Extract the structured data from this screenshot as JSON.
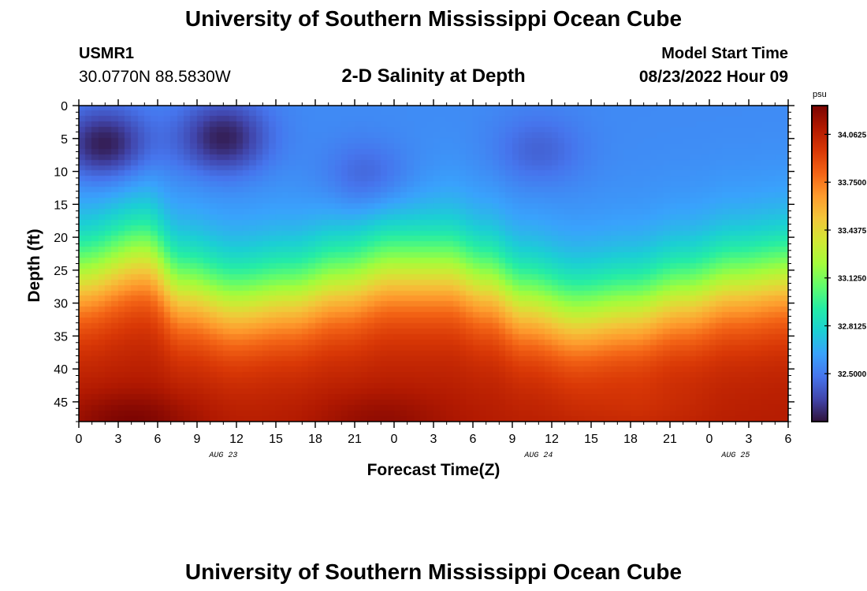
{
  "header": {
    "institution": "University of Southern Mississippi Ocean Cube",
    "station": "USMR1",
    "location": "30.0770N  88.5830W",
    "plot_title": "2-D Salinity at Depth",
    "model_start_label": "Model Start Time",
    "model_start_value": "08/23/2022 Hour 09"
  },
  "footer": {
    "institution": "University of Southern Mississippi Ocean Cube"
  },
  "colors": {
    "ramp": [
      "#30123b",
      "#4145ab",
      "#4675ed",
      "#39a2fc",
      "#1bcfd4",
      "#24eca6",
      "#61fc6c",
      "#a4fc3b",
      "#d1e834",
      "#f3c63a",
      "#fe9b2d",
      "#f36315",
      "#d93806",
      "#b11901",
      "#7a0402"
    ]
  },
  "chart_data": {
    "type": "heatmap",
    "title": "2-D Salinity at Depth",
    "xlabel": "Forecast Time(Z)",
    "ylabel": "Depth (ft)",
    "x_ticks": [
      "0",
      "3",
      "6",
      "9",
      "12",
      "15",
      "18",
      "21",
      "0",
      "3",
      "6",
      "9",
      "12",
      "15",
      "18",
      "21",
      "0",
      "3",
      "6"
    ],
    "date_labels": [
      {
        "text": "AUG 23",
        "at_hours": 11
      },
      {
        "text": "AUG 24",
        "at_hours": 35
      },
      {
        "text": "AUG 25",
        "at_hours": 50
      }
    ],
    "x_range_hours": [
      0,
      54
    ],
    "y_ticks": [
      0,
      5,
      10,
      15,
      20,
      25,
      30,
      35,
      40,
      45
    ],
    "ylim": [
      0,
      48
    ],
    "colorbar": {
      "unit": "psu",
      "range": [
        32.1875,
        34.25
      ],
      "tick_labels": [
        "34.0625",
        "33.7500",
        "33.4375",
        "33.1250",
        "32.8125",
        "32.5000"
      ],
      "tick_values": [
        34.0625,
        33.75,
        33.4375,
        33.125,
        32.8125,
        32.5
      ]
    },
    "halocline_depth_ft": [
      {
        "hour": 0,
        "depth": 26
      },
      {
        "hour": 5,
        "depth": 23
      },
      {
        "hour": 8,
        "depth": 28
      },
      {
        "hour": 12,
        "depth": 30
      },
      {
        "hour": 16,
        "depth": 29
      },
      {
        "hour": 20,
        "depth": 27
      },
      {
        "hour": 24,
        "depth": 25
      },
      {
        "hour": 28,
        "depth": 25
      },
      {
        "hour": 31,
        "depth": 27
      },
      {
        "hour": 34,
        "depth": 30
      },
      {
        "hour": 38,
        "depth": 32
      },
      {
        "hour": 42,
        "depth": 31
      },
      {
        "hour": 46,
        "depth": 29
      },
      {
        "hour": 50,
        "depth": 27
      },
      {
        "hour": 54,
        "depth": 26
      }
    ],
    "surface_salinity_psu": 32.55,
    "bottom_salinity_psu": 34.1,
    "fresh_cores": [
      {
        "hour": 2,
        "depth": 6,
        "salinity_psu": 32.2
      },
      {
        "hour": 11,
        "depth": 5,
        "salinity_psu": 32.22
      },
      {
        "hour": 22,
        "depth": 11,
        "salinity_psu": 32.4
      },
      {
        "hour": 35,
        "depth": 7,
        "salinity_psu": 32.42
      }
    ],
    "salty_cores": [
      {
        "hour": 4,
        "depth": 48,
        "salinity_psu": 34.25
      },
      {
        "hour": 23,
        "depth": 48,
        "salinity_psu": 34.2
      },
      {
        "hour": 43,
        "depth": 46,
        "salinity_psu": 34.05
      }
    ]
  }
}
